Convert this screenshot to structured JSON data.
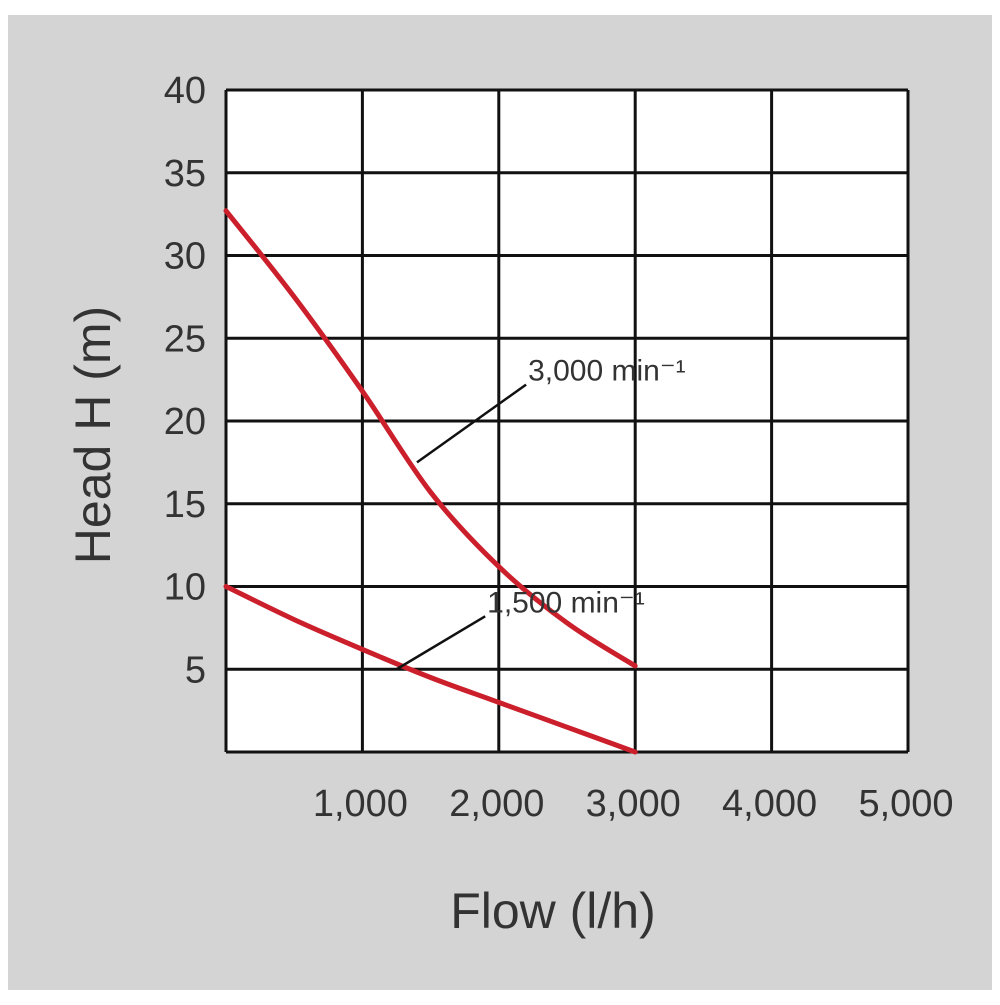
{
  "colors": {
    "background_panel": "#d4d4d4",
    "plot_area": "#ffffff",
    "grid": "#111111",
    "curve": "#cc1f2c",
    "text": "#333333"
  },
  "chart_data": {
    "type": "line",
    "title": "",
    "xlabel": "Flow  (l/h)",
    "ylabel": "Head  H (m)",
    "xlim": [
      0,
      5000
    ],
    "ylim": [
      0,
      40
    ],
    "xticks": [
      1000,
      2000,
      3000,
      4000,
      5000
    ],
    "xtick_labels": [
      "1,000",
      "2,000",
      "3,000",
      "4,000",
      "5,000"
    ],
    "yticks": [
      5,
      10,
      15,
      20,
      25,
      30,
      35,
      40
    ],
    "ytick_labels": [
      "5",
      "10",
      "15",
      "20",
      "25",
      "30",
      "35",
      "40"
    ],
    "grid": true,
    "legend": "none",
    "series": [
      {
        "name": "3,000 min⁻¹",
        "x": [
          0,
          500,
          1000,
          1500,
          2000,
          2500,
          3000
        ],
        "y": [
          32.7,
          27.5,
          21.8,
          15.7,
          11.2,
          7.8,
          5.2
        ]
      },
      {
        "name": "1,500 min⁻¹",
        "x": [
          0,
          500,
          1000,
          1500,
          2000,
          2500,
          3000
        ],
        "y": [
          10.0,
          8.0,
          6.2,
          4.5,
          3.0,
          1.5,
          0.0
        ]
      }
    ],
    "annotations": [
      {
        "text": "3,000 min⁻¹",
        "series": 0,
        "point": [
          1400,
          17.5
        ],
        "label_at": [
          2200,
          22.2
        ]
      },
      {
        "text": "1,500 min⁻¹",
        "series": 1,
        "point": [
          1250,
          5.0
        ],
        "label_at": [
          1900,
          8.2
        ]
      }
    ]
  }
}
